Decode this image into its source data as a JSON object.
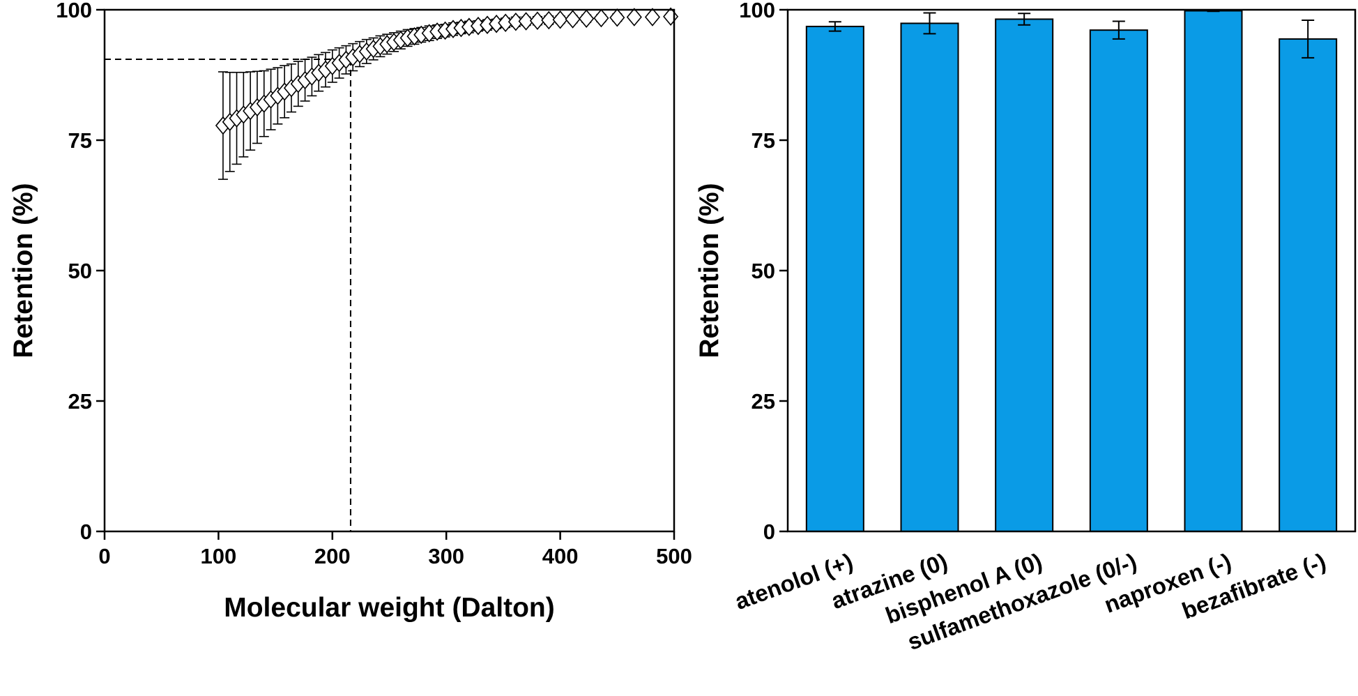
{
  "chart_data": [
    {
      "type": "scatter",
      "marker": "open-diamond",
      "xlabel": "Molecular weight (Dalton)",
      "ylabel": "Retention (%)",
      "xlim": [
        0,
        500
      ],
      "ylim": [
        0,
        100
      ],
      "xticks": [
        "0",
        "100",
        "200",
        "300",
        "400",
        "500"
      ],
      "yticks": [
        "0",
        "25",
        "50",
        "75",
        "100"
      ],
      "error_bars": "upper and lower",
      "reference_lines": {
        "y": 90.5,
        "x": 216,
        "style": "dashed"
      },
      "series": [
        {
          "name": "retention",
          "x": [
            104,
            110,
            116,
            122,
            128,
            134,
            140,
            146,
            152,
            158,
            164,
            170,
            176,
            182,
            188,
            194,
            200,
            206,
            212,
            218,
            224,
            230,
            236,
            242,
            248,
            254,
            260,
            266,
            272,
            278,
            285,
            292,
            299,
            306,
            313,
            320,
            328,
            336,
            344,
            352,
            361,
            370,
            380,
            390,
            400,
            411,
            423,
            436,
            450,
            465,
            481,
            497
          ],
          "y": [
            77.8,
            78.5,
            79.2,
            79.9,
            80.6,
            81.3,
            82.0,
            82.8,
            83.5,
            84.3,
            85.0,
            85.8,
            86.5,
            87.2,
            87.9,
            88.5,
            89.2,
            89.8,
            90.4,
            90.9,
            91.5,
            92.0,
            92.5,
            93.0,
            93.4,
            93.8,
            94.2,
            94.6,
            94.9,
            95.2,
            95.5,
            95.8,
            96.0,
            96.3,
            96.5,
            96.7,
            96.9,
            97.1,
            97.3,
            97.5,
            97.7,
            97.8,
            97.9,
            98.0,
            98.1,
            98.2,
            98.3,
            98.4,
            98.5,
            98.6,
            98.6,
            98.7
          ],
          "yerr": [
            10.3,
            9.5,
            8.8,
            8.1,
            7.5,
            6.9,
            6.3,
            5.8,
            5.4,
            5.0,
            4.6,
            4.3,
            4.0,
            3.7,
            3.5,
            3.3,
            3.1,
            2.9,
            2.7,
            2.6,
            2.4,
            2.3,
            2.1,
            2.0,
            1.9,
            1.8,
            1.7,
            1.6,
            1.5,
            1.4,
            1.4,
            1.3,
            1.2,
            1.2,
            1.1,
            1.1,
            1.0,
            1.0,
            0.9,
            0.9,
            0.9,
            0.8,
            0.8,
            0.8,
            0.7,
            0.7,
            0.7,
            0.7,
            0.7,
            0.6,
            0.6,
            0.6
          ]
        }
      ]
    },
    {
      "type": "bar",
      "ylabel": "Retention (%)",
      "ylim": [
        0,
        100
      ],
      "yticks": [
        "0",
        "25",
        "50",
        "75",
        "100"
      ],
      "bar_color": "#0a9be6",
      "categories": [
        "atenolol (+)",
        "atrazine (0)",
        "bisphenol A (0)",
        "sulfamethoxazole (0/-)",
        "naproxen (-)",
        "bezafibrate (-)"
      ],
      "values": [
        96.8,
        97.4,
        98.2,
        96.1,
        99.8,
        94.4
      ],
      "errors": [
        0.9,
        2.0,
        1.1,
        1.7,
        0.1,
        3.6
      ]
    }
  ]
}
